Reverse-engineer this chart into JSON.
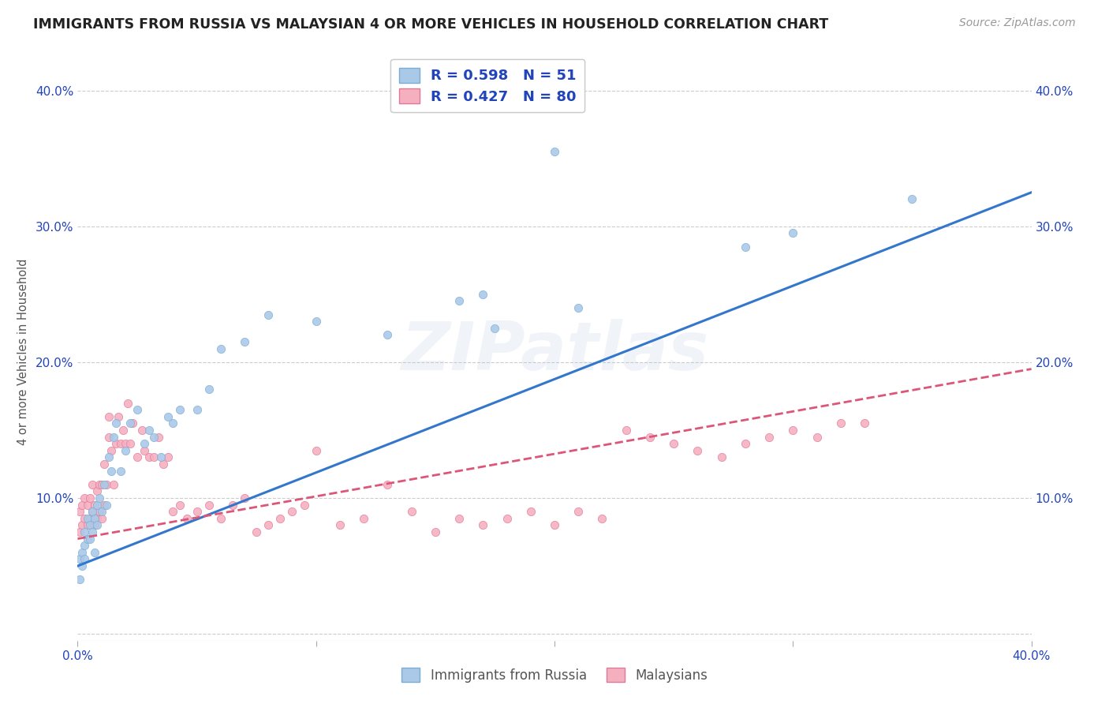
{
  "title": "IMMIGRANTS FROM RUSSIA VS MALAYSIAN 4 OR MORE VEHICLES IN HOUSEHOLD CORRELATION CHART",
  "source": "Source: ZipAtlas.com",
  "ylabel": "4 or more Vehicles in Household",
  "xlim": [
    0.0,
    0.4
  ],
  "ylim": [
    -0.005,
    0.42
  ],
  "yticks": [
    0.0,
    0.1,
    0.2,
    0.3,
    0.4
  ],
  "xticks": [
    0.0,
    0.1,
    0.2,
    0.3,
    0.4
  ],
  "russia_color": "#aac9e8",
  "russia_edge": "#7aadd4",
  "malaysia_color": "#f5b0c0",
  "malaysia_edge": "#e07898",
  "russia_line_color": "#3377cc",
  "malaysia_line_color": "#dd5577",
  "legend_text_color": "#2244bb",
  "R_russia": 0.598,
  "N_russia": 51,
  "R_malaysia": 0.427,
  "N_malaysia": 80,
  "grid_color": "#cccccc",
  "background_color": "#ffffff",
  "watermark": "ZIPatlas",
  "russia_line_x0": 0.0,
  "russia_line_y0": 0.05,
  "russia_line_x1": 0.4,
  "russia_line_y1": 0.325,
  "malaysia_line_x0": 0.0,
  "malaysia_line_y0": 0.07,
  "malaysia_line_x1": 0.4,
  "malaysia_line_y1": 0.195,
  "russia_scatter_x": [
    0.001,
    0.001,
    0.002,
    0.002,
    0.003,
    0.003,
    0.003,
    0.004,
    0.004,
    0.005,
    0.005,
    0.006,
    0.006,
    0.007,
    0.007,
    0.008,
    0.008,
    0.009,
    0.01,
    0.011,
    0.012,
    0.013,
    0.014,
    0.015,
    0.016,
    0.018,
    0.02,
    0.022,
    0.025,
    0.028,
    0.03,
    0.032,
    0.035,
    0.038,
    0.04,
    0.043,
    0.05,
    0.055,
    0.06,
    0.07,
    0.08,
    0.1,
    0.13,
    0.16,
    0.175,
    0.2,
    0.21,
    0.17,
    0.28,
    0.3,
    0.35
  ],
  "russia_scatter_y": [
    0.04,
    0.055,
    0.06,
    0.05,
    0.065,
    0.075,
    0.055,
    0.07,
    0.085,
    0.08,
    0.07,
    0.09,
    0.075,
    0.085,
    0.06,
    0.095,
    0.08,
    0.1,
    0.09,
    0.11,
    0.095,
    0.13,
    0.12,
    0.145,
    0.155,
    0.12,
    0.135,
    0.155,
    0.165,
    0.14,
    0.15,
    0.145,
    0.13,
    0.16,
    0.155,
    0.165,
    0.165,
    0.18,
    0.21,
    0.215,
    0.235,
    0.23,
    0.22,
    0.245,
    0.225,
    0.355,
    0.24,
    0.25,
    0.285,
    0.295,
    0.32
  ],
  "malaysia_scatter_x": [
    0.001,
    0.001,
    0.002,
    0.002,
    0.003,
    0.003,
    0.004,
    0.004,
    0.005,
    0.005,
    0.006,
    0.006,
    0.007,
    0.007,
    0.008,
    0.008,
    0.009,
    0.009,
    0.01,
    0.01,
    0.011,
    0.011,
    0.012,
    0.013,
    0.013,
    0.014,
    0.015,
    0.016,
    0.017,
    0.018,
    0.019,
    0.02,
    0.021,
    0.022,
    0.023,
    0.025,
    0.027,
    0.028,
    0.03,
    0.032,
    0.034,
    0.036,
    0.038,
    0.04,
    0.043,
    0.046,
    0.05,
    0.055,
    0.06,
    0.065,
    0.07,
    0.075,
    0.08,
    0.085,
    0.09,
    0.095,
    0.1,
    0.11,
    0.12,
    0.13,
    0.14,
    0.15,
    0.16,
    0.17,
    0.18,
    0.19,
    0.2,
    0.21,
    0.22,
    0.23,
    0.24,
    0.25,
    0.26,
    0.27,
    0.28,
    0.29,
    0.3,
    0.31,
    0.32,
    0.33
  ],
  "malaysia_scatter_y": [
    0.075,
    0.09,
    0.08,
    0.095,
    0.085,
    0.1,
    0.08,
    0.095,
    0.085,
    0.1,
    0.09,
    0.11,
    0.08,
    0.095,
    0.085,
    0.105,
    0.09,
    0.11,
    0.085,
    0.11,
    0.095,
    0.125,
    0.11,
    0.145,
    0.16,
    0.135,
    0.11,
    0.14,
    0.16,
    0.14,
    0.15,
    0.14,
    0.17,
    0.14,
    0.155,
    0.13,
    0.15,
    0.135,
    0.13,
    0.13,
    0.145,
    0.125,
    0.13,
    0.09,
    0.095,
    0.085,
    0.09,
    0.095,
    0.085,
    0.095,
    0.1,
    0.075,
    0.08,
    0.085,
    0.09,
    0.095,
    0.135,
    0.08,
    0.085,
    0.11,
    0.09,
    0.075,
    0.085,
    0.08,
    0.085,
    0.09,
    0.08,
    0.09,
    0.085,
    0.15,
    0.145,
    0.14,
    0.135,
    0.13,
    0.14,
    0.145,
    0.15,
    0.145,
    0.155,
    0.155
  ]
}
